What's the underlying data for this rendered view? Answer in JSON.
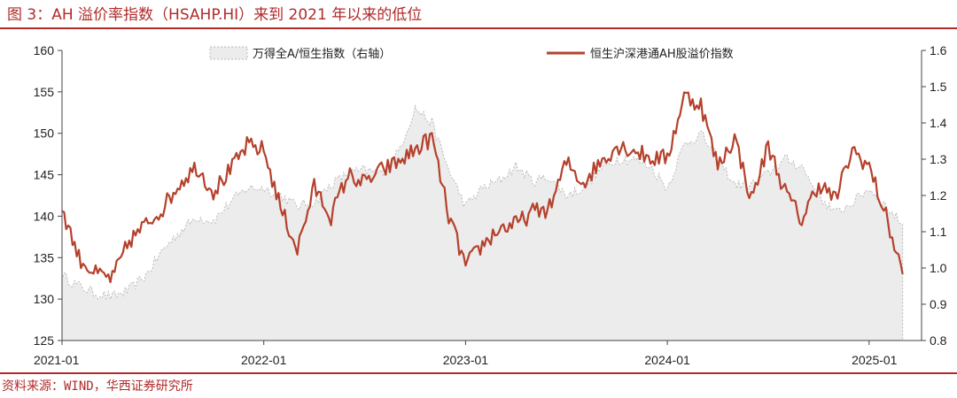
{
  "title": "图 3：AH 溢价率指数（HSAHP.HI）来到 2021 年以来的低位",
  "source": "资料来源：WIND，华西证券研究所",
  "colors": {
    "accent": "#b22a2a",
    "line": "#b5412c",
    "area_fill": "#ececec",
    "area_edge": "#b9b9b9"
  },
  "chart_data": {
    "type": "line",
    "title": "图 3：AH 溢价率指数（HSAHP.HI）来到 2021 年以来的低位",
    "x_tick_labels": [
      "2021-01",
      "2022-01",
      "2023-01",
      "2024-01",
      "2025-01"
    ],
    "left_axis": {
      "ticks": [
        "125",
        "130",
        "135",
        "140",
        "145",
        "150",
        "155",
        "160"
      ],
      "ylim": [
        125,
        160
      ]
    },
    "right_axis": {
      "ticks": [
        "0.8",
        "0.9",
        "1.0",
        "1.1",
        "1.2",
        "1.3",
        "1.4",
        "1.5",
        "1.6"
      ],
      "ylim": [
        0.8,
        1.6
      ]
    },
    "legend_position": "top",
    "x": [
      "2021-01",
      "2021-02",
      "2021-03",
      "2021-04",
      "2021-05",
      "2021-06",
      "2021-07",
      "2021-08",
      "2021-09",
      "2021-10",
      "2021-11",
      "2021-12",
      "2022-01",
      "2022-02",
      "2022-03",
      "2022-04",
      "2022-05",
      "2022-06",
      "2022-07",
      "2022-08",
      "2022-09",
      "2022-10",
      "2022-11",
      "2022-12",
      "2023-01",
      "2023-02",
      "2023-03",
      "2023-04",
      "2023-05",
      "2023-06",
      "2023-07",
      "2023-08",
      "2023-09",
      "2023-10",
      "2023-11",
      "2023-12",
      "2024-01",
      "2024-02",
      "2024-03",
      "2024-04",
      "2024-05",
      "2024-06",
      "2024-07",
      "2024-08",
      "2024-09",
      "2024-10",
      "2024-11",
      "2024-12",
      "2025-01",
      "2025-02",
      "2025-03"
    ],
    "series": [
      {
        "name": "万得全A/恒生指数（右轴）",
        "axis": "right",
        "style": "area",
        "values": [
          0.98,
          0.95,
          0.93,
          0.92,
          0.94,
          0.98,
          1.05,
          1.1,
          1.14,
          1.13,
          1.18,
          1.22,
          1.22,
          1.2,
          1.17,
          1.18,
          1.23,
          1.26,
          1.27,
          1.26,
          1.32,
          1.44,
          1.4,
          1.27,
          1.17,
          1.22,
          1.24,
          1.28,
          1.24,
          1.25,
          1.2,
          1.22,
          1.27,
          1.3,
          1.3,
          1.28,
          1.22,
          1.34,
          1.37,
          1.3,
          1.23,
          1.23,
          1.26,
          1.3,
          1.28,
          1.2,
          1.15,
          1.18,
          1.22,
          1.17,
          1.12
        ]
      },
      {
        "name": "恒生沪深港通AH股溢价指数",
        "axis": "left",
        "style": "line",
        "values": [
          141.0,
          135.0,
          133.0,
          132.5,
          137.0,
          139.0,
          141.0,
          144.0,
          146.0,
          143.0,
          145.5,
          148.5,
          148.0,
          141.0,
          136.0,
          143.5,
          140.0,
          145.0,
          144.0,
          145.5,
          146.5,
          148.0,
          149.5,
          140.0,
          134.0,
          136.5,
          138.5,
          139.0,
          140.5,
          141.0,
          146.5,
          144.0,
          146.5,
          148.5,
          148.0,
          147.0,
          147.0,
          154.5,
          153.5,
          146.0,
          149.5,
          142.0,
          148.5,
          143.0,
          139.5,
          144.0,
          142.0,
          148.0,
          146.0,
          140.0,
          133.0
        ]
      }
    ]
  }
}
